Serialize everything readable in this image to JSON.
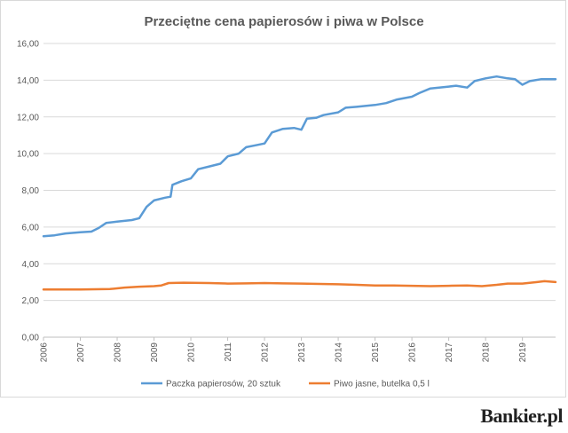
{
  "chart_data": {
    "type": "line",
    "title": "Przeciętne cena papierosów i piwa w Polsce",
    "ylim": [
      0,
      16
    ],
    "y_ticks": [
      "0,00",
      "2,00",
      "4,00",
      "6,00",
      "8,00",
      "10,00",
      "12,00",
      "14,00",
      "16,00"
    ],
    "x_range": [
      2006.0,
      2019.9
    ],
    "x_ticks": [
      "2006",
      "2007",
      "2008",
      "2009",
      "2010",
      "2011",
      "2012",
      "2013",
      "2014",
      "2015",
      "2016",
      "2017",
      "2018",
      "2019"
    ],
    "grid": "horizontal",
    "legend_position": "bottom",
    "series": [
      {
        "name": "Paczka papierosów, 20 sztuk",
        "color": "#5b9bd5",
        "points": [
          [
            2006.0,
            5.5
          ],
          [
            2006.3,
            5.55
          ],
          [
            2006.6,
            5.65
          ],
          [
            2007.0,
            5.72
          ],
          [
            2007.3,
            5.75
          ],
          [
            2007.5,
            5.95
          ],
          [
            2007.7,
            6.22
          ],
          [
            2008.0,
            6.3
          ],
          [
            2008.4,
            6.38
          ],
          [
            2008.6,
            6.48
          ],
          [
            2008.8,
            7.1
          ],
          [
            2009.0,
            7.45
          ],
          [
            2009.3,
            7.6
          ],
          [
            2009.45,
            7.65
          ],
          [
            2009.5,
            8.3
          ],
          [
            2009.75,
            8.5
          ],
          [
            2010.0,
            8.65
          ],
          [
            2010.2,
            9.15
          ],
          [
            2010.5,
            9.3
          ],
          [
            2010.8,
            9.45
          ],
          [
            2011.0,
            9.85
          ],
          [
            2011.3,
            10.0
          ],
          [
            2011.5,
            10.35
          ],
          [
            2011.75,
            10.45
          ],
          [
            2012.0,
            10.55
          ],
          [
            2012.2,
            11.15
          ],
          [
            2012.5,
            11.35
          ],
          [
            2012.8,
            11.4
          ],
          [
            2013.0,
            11.3
          ],
          [
            2013.15,
            11.9
          ],
          [
            2013.4,
            11.95
          ],
          [
            2013.6,
            12.1
          ],
          [
            2014.0,
            12.25
          ],
          [
            2014.2,
            12.5
          ],
          [
            2014.5,
            12.55
          ],
          [
            2015.0,
            12.65
          ],
          [
            2015.3,
            12.75
          ],
          [
            2015.6,
            12.95
          ],
          [
            2016.0,
            13.1
          ],
          [
            2016.2,
            13.3
          ],
          [
            2016.5,
            13.55
          ],
          [
            2017.0,
            13.65
          ],
          [
            2017.2,
            13.7
          ],
          [
            2017.5,
            13.6
          ],
          [
            2017.7,
            13.95
          ],
          [
            2018.0,
            14.1
          ],
          [
            2018.3,
            14.2
          ],
          [
            2018.6,
            14.1
          ],
          [
            2018.8,
            14.05
          ],
          [
            2019.0,
            13.75
          ],
          [
            2019.2,
            13.95
          ],
          [
            2019.5,
            14.05
          ],
          [
            2019.9,
            14.05
          ]
        ]
      },
      {
        "name": "Piwo jasne, butelka 0,5 l",
        "color": "#ed7d31",
        "points": [
          [
            2006.0,
            2.6
          ],
          [
            2007.0,
            2.6
          ],
          [
            2007.8,
            2.62
          ],
          [
            2008.2,
            2.7
          ],
          [
            2008.6,
            2.75
          ],
          [
            2009.0,
            2.78
          ],
          [
            2009.2,
            2.82
          ],
          [
            2009.4,
            2.95
          ],
          [
            2009.8,
            2.97
          ],
          [
            2010.5,
            2.95
          ],
          [
            2011.0,
            2.92
          ],
          [
            2011.5,
            2.93
          ],
          [
            2012.0,
            2.95
          ],
          [
            2012.5,
            2.93
          ],
          [
            2013.0,
            2.92
          ],
          [
            2013.5,
            2.9
          ],
          [
            2014.0,
            2.88
          ],
          [
            2014.5,
            2.85
          ],
          [
            2015.0,
            2.82
          ],
          [
            2015.5,
            2.82
          ],
          [
            2016.0,
            2.8
          ],
          [
            2016.5,
            2.78
          ],
          [
            2017.0,
            2.8
          ],
          [
            2017.5,
            2.82
          ],
          [
            2017.9,
            2.78
          ],
          [
            2018.3,
            2.85
          ],
          [
            2018.6,
            2.92
          ],
          [
            2019.0,
            2.92
          ],
          [
            2019.4,
            3.0
          ],
          [
            2019.6,
            3.05
          ],
          [
            2019.9,
            3.0
          ]
        ]
      }
    ]
  },
  "brand": "Bankier.pl"
}
